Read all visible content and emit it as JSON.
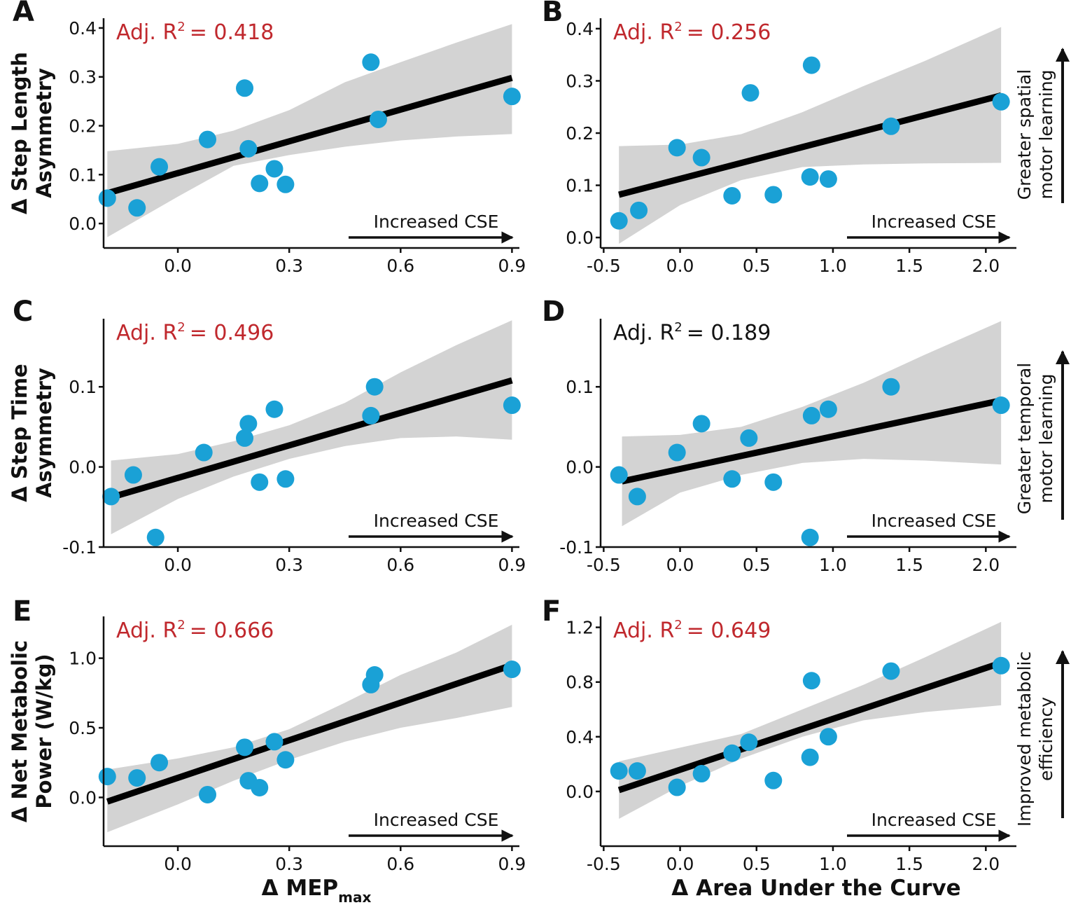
{
  "colors": {
    "point": "#1aa1d6",
    "line": "#000000",
    "band": "#d3d3d3",
    "significant": "#c0282d",
    "nonsignificant": "#111111"
  },
  "x_axes": {
    "mep": {
      "label": "Δ MEP",
      "label_sub": "max"
    },
    "auc": {
      "label": "Δ Area Under the Curve"
    }
  },
  "side_labels": {
    "spatial": [
      "Greater spatial",
      "motor learning"
    ],
    "temporal": [
      "Greater temporal",
      "motor learning"
    ],
    "metabolic": [
      "Improved metabolic",
      "efficiency"
    ]
  },
  "chart_data": [
    {
      "id": "A",
      "panel": "A",
      "type": "scatter",
      "group": "mep",
      "ylabel": [
        "Δ Step Length",
        "Asymmetry"
      ],
      "xlim": [
        -0.2,
        0.92
      ],
      "ylim": [
        -0.05,
        0.42
      ],
      "xticks": [
        0.0,
        0.3,
        0.6,
        0.9
      ],
      "xtick_labels": [
        "0.0",
        "0.3",
        "0.6",
        "0.9"
      ],
      "yticks": [
        0.0,
        0.1,
        0.2,
        0.3,
        0.4
      ],
      "ytick_labels": [
        "0.0",
        "0.1",
        "0.2",
        "0.3",
        "0.4"
      ],
      "r2_prefix": "Adj. R",
      "r2_sup": "2",
      "r2_value": "= 0.418",
      "r2_significant": true,
      "annotation": "Increased CSE",
      "points": [
        [
          -0.19,
          0.052
        ],
        [
          -0.11,
          0.032
        ],
        [
          -0.05,
          0.116
        ],
        [
          0.08,
          0.172
        ],
        [
          0.18,
          0.277
        ],
        [
          0.19,
          0.153
        ],
        [
          0.22,
          0.082
        ],
        [
          0.26,
          0.112
        ],
        [
          0.29,
          0.08
        ],
        [
          0.52,
          0.33
        ],
        [
          0.54,
          0.213
        ],
        [
          0.9,
          0.26
        ]
      ],
      "fit": {
        "x": [
          -0.19,
          0.9
        ],
        "y": [
          0.062,
          0.298
        ]
      },
      "band_upper": [
        [
          -0.19,
          0.148
        ],
        [
          0.0,
          0.163
        ],
        [
          0.15,
          0.19
        ],
        [
          0.3,
          0.232
        ],
        [
          0.45,
          0.289
        ],
        [
          0.6,
          0.33
        ],
        [
          0.75,
          0.37
        ],
        [
          0.9,
          0.408
        ]
      ],
      "band_lower": [
        [
          -0.19,
          -0.028
        ],
        [
          0.0,
          0.055
        ],
        [
          0.15,
          0.118
        ],
        [
          0.3,
          0.14
        ],
        [
          0.45,
          0.157
        ],
        [
          0.6,
          0.17
        ],
        [
          0.75,
          0.178
        ],
        [
          0.9,
          0.183
        ]
      ]
    },
    {
      "id": "B",
      "panel": "B",
      "type": "scatter",
      "group": "auc",
      "ylabel": [],
      "xlim": [
        -0.52,
        2.2
      ],
      "ylim": [
        -0.02,
        0.42
      ],
      "xticks": [
        -0.5,
        0.0,
        0.5,
        1.0,
        1.5,
        2.0
      ],
      "xtick_labels": [
        "-0.5",
        "0.0",
        "0.5",
        "1.0",
        "1.5",
        "2.0"
      ],
      "yticks": [
        0.0,
        0.1,
        0.2,
        0.3,
        0.4
      ],
      "ytick_labels": [
        "0.0",
        "0.1",
        "0.2",
        "0.3",
        "0.4"
      ],
      "r2_prefix": "Adj. R",
      "r2_sup": "2",
      "r2_value": "= 0.256",
      "r2_significant": true,
      "annotation": "Increased CSE",
      "side": "spatial",
      "points": [
        [
          -0.4,
          0.032
        ],
        [
          -0.27,
          0.052
        ],
        [
          -0.02,
          0.172
        ],
        [
          0.14,
          0.153
        ],
        [
          0.34,
          0.08
        ],
        [
          0.46,
          0.277
        ],
        [
          0.61,
          0.082
        ],
        [
          0.85,
          0.116
        ],
        [
          0.86,
          0.33
        ],
        [
          0.97,
          0.112
        ],
        [
          1.38,
          0.213
        ],
        [
          2.1,
          0.26
        ]
      ],
      "fit": {
        "x": [
          -0.4,
          2.1
        ],
        "y": [
          0.082,
          0.272
        ]
      },
      "band_upper": [
        [
          -0.4,
          0.175
        ],
        [
          0.0,
          0.178
        ],
        [
          0.4,
          0.198
        ],
        [
          0.8,
          0.24
        ],
        [
          1.2,
          0.29
        ],
        [
          1.6,
          0.338
        ],
        [
          2.1,
          0.403
        ]
      ],
      "band_lower": [
        [
          -0.4,
          -0.012
        ],
        [
          0.0,
          0.062
        ],
        [
          0.4,
          0.11
        ],
        [
          0.8,
          0.135
        ],
        [
          1.2,
          0.14
        ],
        [
          1.6,
          0.142
        ],
        [
          2.1,
          0.143
        ]
      ]
    },
    {
      "id": "C",
      "panel": "C",
      "type": "scatter",
      "group": "mep",
      "ylabel": [
        "Δ Step Time",
        "Asymmetry"
      ],
      "xlim": [
        -0.2,
        0.92
      ],
      "ylim": [
        -0.1,
        0.185
      ],
      "xticks": [
        0.0,
        0.3,
        0.6,
        0.9
      ],
      "xtick_labels": [
        "0.0",
        "0.3",
        "0.6",
        "0.9"
      ],
      "yticks": [
        -0.1,
        0.0,
        0.1
      ],
      "ytick_labels": [
        "-0.1",
        "0.0",
        "0.1"
      ],
      "r2_prefix": "Adj. R",
      "r2_sup": "2",
      "r2_value": "= 0.496",
      "r2_significant": true,
      "annotation": "Increased CSE",
      "points": [
        [
          -0.18,
          -0.037
        ],
        [
          -0.12,
          -0.01
        ],
        [
          -0.06,
          -0.088
        ],
        [
          0.07,
          0.018
        ],
        [
          0.18,
          0.036
        ],
        [
          0.19,
          0.054
        ],
        [
          0.22,
          -0.019
        ],
        [
          0.26,
          0.072
        ],
        [
          0.29,
          -0.015
        ],
        [
          0.52,
          0.064
        ],
        [
          0.53,
          0.1
        ],
        [
          0.9,
          0.077
        ]
      ],
      "fit": {
        "x": [
          -0.18,
          0.9
        ],
        "y": [
          -0.038,
          0.108
        ]
      },
      "band_upper": [
        [
          -0.18,
          0.008
        ],
        [
          0.0,
          0.016
        ],
        [
          0.15,
          0.032
        ],
        [
          0.3,
          0.052
        ],
        [
          0.45,
          0.08
        ],
        [
          0.6,
          0.118
        ],
        [
          0.75,
          0.152
        ],
        [
          0.9,
          0.183
        ]
      ],
      "band_lower": [
        [
          -0.18,
          -0.084
        ],
        [
          0.0,
          -0.04
        ],
        [
          0.15,
          -0.012
        ],
        [
          0.3,
          0.01
        ],
        [
          0.45,
          0.026
        ],
        [
          0.6,
          0.036
        ],
        [
          0.75,
          0.038
        ],
        [
          0.9,
          0.034
        ]
      ]
    },
    {
      "id": "D",
      "panel": "D",
      "type": "scatter",
      "group": "auc",
      "ylabel": [],
      "xlim": [
        -0.52,
        2.2
      ],
      "ylim": [
        -0.1,
        0.185
      ],
      "xticks": [
        -0.5,
        0.0,
        0.5,
        1.0,
        1.5,
        2.0
      ],
      "xtick_labels": [
        "-0.5",
        "0.0",
        "0.5",
        "1.0",
        "1.5",
        "2.0"
      ],
      "yticks": [
        -0.1,
        0.0,
        0.1
      ],
      "ytick_labels": [
        "-0.1",
        "0.0",
        "0.1"
      ],
      "r2_prefix": "Adj. R",
      "r2_sup": "2",
      "r2_value": "= 0.189",
      "r2_significant": false,
      "annotation": "Increased CSE",
      "side": "temporal",
      "points": [
        [
          -0.4,
          -0.01
        ],
        [
          -0.28,
          -0.037
        ],
        [
          -0.02,
          0.018
        ],
        [
          0.14,
          0.054
        ],
        [
          0.34,
          -0.015
        ],
        [
          0.45,
          0.036
        ],
        [
          0.61,
          -0.019
        ],
        [
          0.85,
          -0.088
        ],
        [
          0.86,
          0.064
        ],
        [
          0.97,
          0.072
        ],
        [
          1.38,
          0.1
        ],
        [
          2.1,
          0.077
        ]
      ],
      "fit": {
        "x": [
          -0.38,
          2.1
        ],
        "y": [
          -0.018,
          0.083
        ]
      },
      "band_upper": [
        [
          -0.38,
          0.038
        ],
        [
          0.0,
          0.04
        ],
        [
          0.4,
          0.05
        ],
        [
          0.8,
          0.075
        ],
        [
          1.2,
          0.105
        ],
        [
          1.6,
          0.14
        ],
        [
          2.1,
          0.182
        ]
      ],
      "band_lower": [
        [
          -0.38,
          -0.074
        ],
        [
          0.0,
          -0.032
        ],
        [
          0.4,
          -0.01
        ],
        [
          0.8,
          0.005
        ],
        [
          1.2,
          0.01
        ],
        [
          1.6,
          0.008
        ],
        [
          2.1,
          0.003
        ]
      ]
    },
    {
      "id": "E",
      "panel": "E",
      "type": "scatter",
      "group": "mep",
      "ylabel": [
        "Δ Net Metabolic",
        "Power (W/kg)"
      ],
      "xlim": [
        -0.2,
        0.92
      ],
      "ylim": [
        -0.35,
        1.3
      ],
      "xticks": [
        0.0,
        0.3,
        0.6,
        0.9
      ],
      "xtick_labels": [
        "0.0",
        "0.3",
        "0.6",
        "0.9"
      ],
      "yticks": [
        0.0,
        0.5,
        1.0
      ],
      "ytick_labels": [
        "0.0",
        "0.5",
        "1.0"
      ],
      "r2_prefix": "Adj. R",
      "r2_sup": "2",
      "r2_value": "= 0.666",
      "r2_significant": true,
      "annotation": "Increased CSE",
      "points": [
        [
          -0.19,
          0.15
        ],
        [
          -0.11,
          0.14
        ],
        [
          -0.05,
          0.25
        ],
        [
          0.08,
          0.02
        ],
        [
          0.18,
          0.36
        ],
        [
          0.19,
          0.12
        ],
        [
          0.22,
          0.07
        ],
        [
          0.26,
          0.4
        ],
        [
          0.29,
          0.27
        ],
        [
          0.52,
          0.81
        ],
        [
          0.53,
          0.88
        ],
        [
          0.9,
          0.92
        ]
      ],
      "fit": {
        "x": [
          -0.19,
          0.9
        ],
        "y": [
          -0.03,
          0.95
        ]
      },
      "band_upper": [
        [
          -0.19,
          0.2
        ],
        [
          0.0,
          0.28
        ],
        [
          0.15,
          0.36
        ],
        [
          0.3,
          0.49
        ],
        [
          0.45,
          0.68
        ],
        [
          0.6,
          0.88
        ],
        [
          0.75,
          1.04
        ],
        [
          0.9,
          1.24
        ]
      ],
      "band_lower": [
        [
          -0.19,
          -0.25
        ],
        [
          0.0,
          -0.05
        ],
        [
          0.15,
          0.12
        ],
        [
          0.3,
          0.27
        ],
        [
          0.45,
          0.4
        ],
        [
          0.6,
          0.5
        ],
        [
          0.75,
          0.57
        ],
        [
          0.9,
          0.65
        ]
      ]
    },
    {
      "id": "F",
      "panel": "F",
      "type": "scatter",
      "group": "auc",
      "ylabel": [],
      "xlim": [
        -0.52,
        2.2
      ],
      "ylim": [
        -0.4,
        1.28
      ],
      "xticks": [
        -0.5,
        0.0,
        0.5,
        1.0,
        1.5,
        2.0
      ],
      "xtick_labels": [
        "-0.5",
        "0.0",
        "0.5",
        "1.0",
        "1.5",
        "2.0"
      ],
      "yticks": [
        0.0,
        0.4,
        0.8,
        1.2
      ],
      "ytick_labels": [
        "0.0",
        "0.4",
        "0.8",
        "1.2"
      ],
      "r2_prefix": "Adj. R",
      "r2_sup": "2",
      "r2_value": "= 0.649",
      "r2_significant": true,
      "annotation": "Increased CSE",
      "side": "metabolic",
      "points": [
        [
          -0.4,
          0.15
        ],
        [
          -0.28,
          0.15
        ],
        [
          -0.02,
          0.03
        ],
        [
          0.14,
          0.13
        ],
        [
          0.34,
          0.28
        ],
        [
          0.45,
          0.36
        ],
        [
          0.61,
          0.08
        ],
        [
          0.85,
          0.25
        ],
        [
          0.86,
          0.81
        ],
        [
          0.97,
          0.4
        ],
        [
          1.38,
          0.88
        ],
        [
          2.1,
          0.92
        ]
      ],
      "fit": {
        "x": [
          -0.4,
          2.1
        ],
        "y": [
          0.01,
          0.94
        ]
      },
      "band_upper": [
        [
          -0.4,
          0.22
        ],
        [
          0.0,
          0.32
        ],
        [
          0.4,
          0.42
        ],
        [
          0.8,
          0.6
        ],
        [
          1.2,
          0.78
        ],
        [
          1.6,
          0.98
        ],
        [
          2.1,
          1.24
        ]
      ],
      "band_lower": [
        [
          -0.4,
          -0.2
        ],
        [
          0.0,
          0.04
        ],
        [
          0.4,
          0.24
        ],
        [
          0.8,
          0.4
        ],
        [
          1.2,
          0.52
        ],
        [
          1.6,
          0.58
        ],
        [
          2.1,
          0.63
        ]
      ]
    }
  ]
}
